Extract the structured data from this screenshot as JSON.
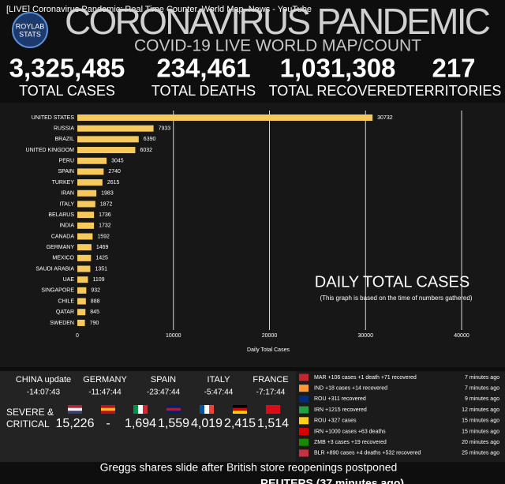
{
  "window_title": "[LIVE] Coronavirus Pandemic: Real Time Counter, World Map, News - YouTube",
  "logo": {
    "line1": "ROYLAB",
    "line2": "STATS"
  },
  "header": {
    "title": "CORONAVIRUS PANDEMIC",
    "subtitle": "COVID-19 LIVE WORLD MAP/COUNT"
  },
  "stats": [
    {
      "value": "3,325,485",
      "label": "TOTAL CASES"
    },
    {
      "value": "234,461",
      "label": "TOTAL DEATHS"
    },
    {
      "value": "1,031,308",
      "label": "TOTAL RECOVERED"
    },
    {
      "value": "217",
      "label": "TERRITORIES"
    }
  ],
  "chart_data": {
    "type": "bar",
    "orientation": "horizontal",
    "title": "DAILY TOTAL CASES",
    "subtitle": "(This graph is based on the time of numbers gathered)",
    "x_label": "Daily Total Cases",
    "categories": [
      "UNITED STATES",
      "RUSSIA",
      "BRAZIL",
      "UNITED KINGDOM",
      "PERU",
      "SPAIN",
      "TURKEY",
      "IRAN",
      "ITALY",
      "BELARUS",
      "INDIA",
      "CANADA",
      "GERMANY",
      "MEXICO",
      "SAUDI ARABIA",
      "UAE",
      "SINGAPORE",
      "CHILE",
      "QATAR",
      "SWEDEN"
    ],
    "values": [
      30732,
      7933,
      6390,
      6032,
      3045,
      2740,
      2615,
      1983,
      1872,
      1736,
      1732,
      1592,
      1469,
      1425,
      1351,
      1109,
      932,
      888,
      845,
      790
    ],
    "color": "#f7c95c",
    "xlim": [
      0,
      43000
    ],
    "xticks": [
      0,
      10000,
      20000,
      30000,
      40000
    ],
    "grid": true
  },
  "timezones": [
    {
      "name": "CHINA update",
      "time": "-14:07:43"
    },
    {
      "name": "GERMANY",
      "time": "-11:47:44"
    },
    {
      "name": "SPAIN",
      "time": "-23:47:44"
    },
    {
      "name": "ITALY",
      "time": "-5:47:44"
    },
    {
      "name": "FRANCE",
      "time": "-7:17:44"
    }
  ],
  "severe": {
    "label1": "SEVERE &",
    "label2": "CRITICAL",
    "values": [
      "15,226",
      "-",
      "1,694",
      "1,559",
      "4,019",
      "2,415",
      "1,514"
    ]
  },
  "feed": [
    {
      "text": "MAR +106 cases +1 death +71 recovered",
      "time": "7 minutes ago"
    },
    {
      "text": "IND +18 cases +14 recovered",
      "time": "7 minutes ago"
    },
    {
      "text": "ROU +311 recovered",
      "time": "9 minutes ago"
    },
    {
      "text": "IRN +1215 recovered",
      "time": "12 minutes ago"
    },
    {
      "text": "ROU +327 cases",
      "time": "15 minutes ago"
    },
    {
      "text": "IRN +1000 cases +63 deaths",
      "time": "15 minutes ago"
    },
    {
      "text": "ZMB +3 cases +19 recovered",
      "time": "20 minutes ago"
    },
    {
      "text": "BLR +890 cases +4 deaths +532 recovered",
      "time": "25 minutes ago"
    }
  ],
  "news": {
    "headline": "Greggs shares slide after British store reopenings postponed",
    "source": "REUTERS (37 minutes ago)"
  }
}
